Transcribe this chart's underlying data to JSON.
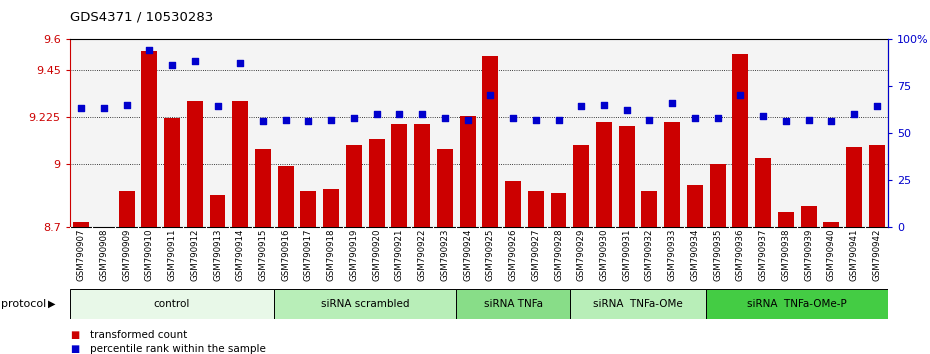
{
  "title": "GDS4371 / 10530283",
  "samples": [
    "GSM790907",
    "GSM790908",
    "GSM790909",
    "GSM790910",
    "GSM790911",
    "GSM790912",
    "GSM790913",
    "GSM790914",
    "GSM790915",
    "GSM790916",
    "GSM790917",
    "GSM790918",
    "GSM790919",
    "GSM790920",
    "GSM790921",
    "GSM790922",
    "GSM790923",
    "GSM790924",
    "GSM790925",
    "GSM790926",
    "GSM790927",
    "GSM790928",
    "GSM790929",
    "GSM790930",
    "GSM790931",
    "GSM790932",
    "GSM790933",
    "GSM790934",
    "GSM790935",
    "GSM790936",
    "GSM790937",
    "GSM790938",
    "GSM790939",
    "GSM790940",
    "GSM790941",
    "GSM790942"
  ],
  "bar_values": [
    8.72,
    8.68,
    8.87,
    9.54,
    9.22,
    9.3,
    8.85,
    9.3,
    9.07,
    8.99,
    8.87,
    8.88,
    9.09,
    9.12,
    9.19,
    9.19,
    9.07,
    9.23,
    9.52,
    8.92,
    8.87,
    8.86,
    9.09,
    9.2,
    9.18,
    8.87,
    9.2,
    8.9,
    9.0,
    9.53,
    9.03,
    8.77,
    8.8,
    8.72,
    9.08,
    9.09
  ],
  "dot_values": [
    63,
    63,
    65,
    94,
    86,
    88,
    64,
    87,
    56,
    57,
    56,
    57,
    58,
    60,
    60,
    60,
    58,
    57,
    70,
    58,
    57,
    57,
    64,
    65,
    62,
    57,
    66,
    58,
    58,
    70,
    59,
    56,
    57,
    56,
    60,
    64
  ],
  "bar_color": "#cc0000",
  "dot_color": "#0000cc",
  "bar_bottom": 8.7,
  "ylim_left": [
    8.7,
    9.6
  ],
  "ylim_right": [
    0,
    100
  ],
  "yticks_left": [
    8.7,
    9.0,
    9.225,
    9.45,
    9.6
  ],
  "ytick_labels_left": [
    "8.7",
    "9",
    "9.225",
    "9.45",
    "9.6"
  ],
  "yticks_right": [
    0,
    25,
    50,
    75,
    100
  ],
  "ytick_labels_right": [
    "0",
    "25",
    "50",
    "75",
    "100%"
  ],
  "grid_lines": [
    9.0,
    9.225,
    9.45
  ],
  "protocol_groups": [
    {
      "label": "control",
      "start": 0,
      "end": 8,
      "color": "#e8f8e8"
    },
    {
      "label": "siRNA scrambled",
      "start": 9,
      "end": 16,
      "color": "#b8eeb8"
    },
    {
      "label": "siRNA TNFa",
      "start": 17,
      "end": 21,
      "color": "#88dd88"
    },
    {
      "label": "siRNA  TNFa-OMe",
      "start": 22,
      "end": 27,
      "color": "#b8eeb8"
    },
    {
      "label": "siRNA  TNFa-OMe-P",
      "start": 28,
      "end": 35,
      "color": "#44cc44"
    }
  ],
  "legend_items": [
    {
      "label": "transformed count",
      "color": "#cc0000"
    },
    {
      "label": "percentile rank within the sample",
      "color": "#0000cc"
    }
  ],
  "protocol_label": "protocol",
  "tick_color_left": "#cc0000",
  "tick_color_right": "#0000cc",
  "xtick_bg_color": "#c8c8c8",
  "xtick_line_color": "#ffffff",
  "plot_bg_color": "#f4f4f4"
}
